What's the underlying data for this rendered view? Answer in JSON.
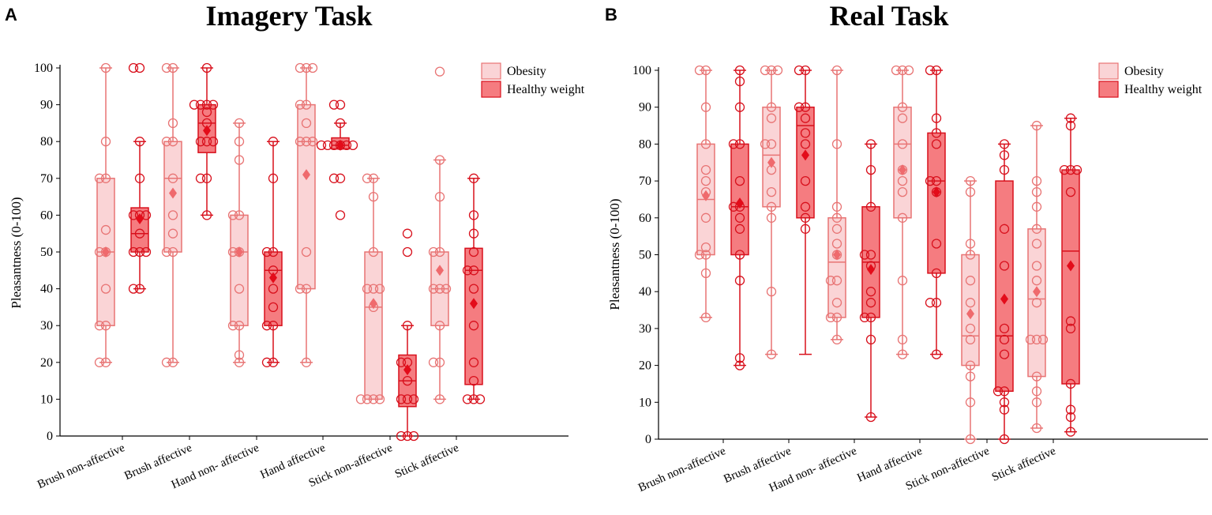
{
  "panels": [
    {
      "letter": "A",
      "title": "Imagery Task",
      "ylabel": "Pleasantness (0-100)",
      "legend": [
        "Obesity",
        "Healthy weight"
      ]
    },
    {
      "letter": "B",
      "title": "Real Task",
      "ylabel": "Pleasantness (0-100)",
      "legend": [
        "Obesity",
        "Healthy weight"
      ]
    }
  ],
  "colors": {
    "obesity_fill": "#fad4d6",
    "obesity_stroke": "#e87474",
    "healthy_fill": "#f57c80",
    "healthy_stroke": "#d8101c",
    "obesity_mean": "#ef6a6d",
    "healthy_mean": "#e30c1a"
  },
  "chart_data": [
    {
      "type": "box",
      "title": "Imagery Task",
      "ylabel": "Pleasantness (0-100)",
      "ylim": [
        0,
        100
      ],
      "yticks": [
        0,
        10,
        20,
        30,
        40,
        50,
        60,
        70,
        80,
        90,
        100
      ],
      "categories": [
        "Brush non-affective",
        "Brush affective",
        "Hand non- affective",
        "Hand affective",
        "Stick non-affective",
        "Stick affective"
      ],
      "series": [
        {
          "name": "Obesity",
          "boxes": [
            {
              "min": 20,
              "q1": 30,
              "median": 50,
              "q3": 70,
              "max": 100,
              "mean": 50,
              "points": [
                20,
                20,
                30,
                30,
                40,
                50,
                50,
                56,
                70,
                70,
                80,
                100
              ]
            },
            {
              "min": 20,
              "q1": 50,
              "median": 70,
              "q3": 80,
              "max": 100,
              "mean": 66,
              "points": [
                20,
                20,
                50,
                50,
                55,
                60,
                70,
                80,
                80,
                85,
                100,
                100
              ]
            },
            {
              "min": 20,
              "q1": 30,
              "median": 50,
              "q3": 60,
              "max": 85,
              "mean": 50,
              "points": [
                20,
                22,
                30,
                30,
                40,
                50,
                50,
                60,
                60,
                75,
                80,
                85
              ]
            },
            {
              "min": 20,
              "q1": 40,
              "median": 80,
              "q3": 90,
              "max": 100,
              "mean": 71,
              "points": [
                20,
                40,
                40,
                50,
                80,
                80,
                80,
                85,
                90,
                90,
                100,
                100,
                100
              ]
            },
            {
              "min": 10,
              "q1": 10,
              "median": 35,
              "q3": 50,
              "max": 70,
              "mean": 36,
              "points": [
                10,
                10,
                10,
                10,
                35,
                40,
                40,
                40,
                50,
                65,
                70,
                70
              ]
            },
            {
              "min": 10,
              "q1": 30,
              "median": 40,
              "q3": 50,
              "max": 75,
              "mean": 45,
              "points": [
                10,
                20,
                20,
                30,
                40,
                40,
                40,
                50,
                50,
                65,
                75,
                99
              ]
            }
          ]
        },
        {
          "name": "Healthy weight",
          "boxes": [
            {
              "min": 40,
              "q1": 50,
              "median": 55,
              "q3": 62,
              "max": 80,
              "mean": 59,
              "points": [
                40,
                40,
                50,
                50,
                50,
                55,
                60,
                60,
                60,
                70,
                80,
                100,
                100
              ]
            },
            {
              "min": 60,
              "q1": 77,
              "median": 85,
              "q3": 90,
              "max": 100,
              "mean": 83,
              "points": [
                60,
                70,
                70,
                80,
                80,
                80,
                85,
                88,
                90,
                90,
                90,
                90,
                100
              ]
            },
            {
              "min": 20,
              "q1": 30,
              "median": 45,
              "q3": 50,
              "max": 80,
              "mean": 43,
              "points": [
                20,
                20,
                30,
                30,
                35,
                40,
                45,
                50,
                50,
                70,
                80
              ]
            },
            {
              "min": 78,
              "q1": 78,
              "median": 79,
              "q3": 81,
              "max": 85,
              "mean": 79,
              "points": [
                60,
                70,
                70,
                79,
                79,
                79,
                79,
                79,
                79,
                85,
                90,
                90
              ]
            },
            {
              "min": 0,
              "q1": 8,
              "median": 15,
              "q3": 22,
              "max": 30,
              "mean": 18,
              "points": [
                0,
                0,
                0,
                10,
                10,
                10,
                15,
                20,
                20,
                30,
                50,
                55
              ]
            },
            {
              "min": 10,
              "q1": 14,
              "median": 45,
              "q3": 51,
              "max": 70,
              "mean": 36,
              "points": [
                10,
                10,
                10,
                15,
                20,
                30,
                40,
                45,
                45,
                50,
                55,
                60,
                70
              ]
            }
          ]
        }
      ]
    },
    {
      "type": "box",
      "title": "Real Task",
      "ylabel": "Pleasantness (0-100)",
      "ylim": [
        0,
        100
      ],
      "yticks": [
        0,
        10,
        20,
        30,
        40,
        50,
        60,
        70,
        80,
        90,
        100
      ],
      "categories": [
        "Brush non-affective",
        "Brush affective",
        "Hand non- affective",
        "Hand affective",
        "Stick non-affective",
        "Stick affective"
      ],
      "series": [
        {
          "name": "Obesity",
          "boxes": [
            {
              "min": 33,
              "q1": 50,
              "median": 65,
              "q3": 80,
              "max": 100,
              "mean": 66,
              "points": [
                33,
                45,
                50,
                50,
                52,
                60,
                67,
                70,
                73,
                80,
                90,
                100,
                100
              ]
            },
            {
              "min": 23,
              "q1": 63,
              "median": 77,
              "q3": 90,
              "max": 100,
              "mean": 75,
              "points": [
                23,
                40,
                60,
                63,
                67,
                73,
                80,
                80,
                87,
                90,
                100,
                100,
                100
              ]
            },
            {
              "min": 27,
              "q1": 33,
              "median": 48,
              "q3": 60,
              "max": 100,
              "mean": 50,
              "points": [
                27,
                33,
                33,
                37,
                43,
                43,
                50,
                53,
                57,
                60,
                63,
                80,
                100
              ]
            },
            {
              "min": 23,
              "q1": 60,
              "median": 80,
              "q3": 90,
              "max": 100,
              "mean": 73,
              "points": [
                23,
                27,
                43,
                60,
                67,
                70,
                73,
                80,
                87,
                90,
                100,
                100,
                100
              ]
            },
            {
              "min": 0,
              "q1": 20,
              "median": 28,
              "q3": 50,
              "max": 70,
              "mean": 34,
              "points": [
                0,
                10,
                17,
                20,
                27,
                30,
                37,
                43,
                50,
                53,
                67,
                70
              ]
            },
            {
              "min": 3,
              "q1": 17,
              "median": 38,
              "q3": 57,
              "max": 85,
              "mean": 40,
              "points": [
                3,
                10,
                13,
                17,
                27,
                27,
                27,
                37,
                43,
                47,
                53,
                57,
                63,
                67,
                70,
                85
              ]
            }
          ]
        },
        {
          "name": "Healthy weight",
          "boxes": [
            {
              "min": 20,
              "q1": 50,
              "median": 63,
              "q3": 80,
              "max": 100,
              "mean": 64,
              "points": [
                20,
                22,
                43,
                50,
                57,
                60,
                63,
                63,
                70,
                80,
                80,
                90,
                97,
                100
              ]
            },
            {
              "min": 23,
              "q1": 60,
              "median": 85,
              "q3": 90,
              "max": 100,
              "mean": 77,
              "points": [
                57,
                60,
                63,
                70,
                80,
                83,
                87,
                90,
                90,
                100,
                100
              ]
            },
            {
              "min": 6,
              "q1": 33,
              "median": 48,
              "q3": 63,
              "max": 80,
              "mean": 46,
              "points": [
                6,
                27,
                33,
                33,
                37,
                40,
                47,
                50,
                50,
                63,
                73,
                80
              ]
            },
            {
              "min": 23,
              "q1": 45,
              "median": 70,
              "q3": 83,
              "max": 100,
              "mean": 67,
              "points": [
                23,
                37,
                37,
                45,
                53,
                67,
                70,
                70,
                80,
                83,
                87,
                100,
                100
              ]
            },
            {
              "min": 0,
              "q1": 13,
              "median": 28,
              "q3": 70,
              "max": 80,
              "mean": 38,
              "points": [
                0,
                8,
                10,
                13,
                13,
                23,
                27,
                30,
                47,
                57,
                73,
                77,
                80
              ]
            },
            {
              "min": 2,
              "q1": 15,
              "median": 51,
              "q3": 73,
              "max": 87,
              "mean": 47,
              "points": [
                2,
                6,
                8,
                15,
                30,
                32,
                67,
                73,
                73,
                73,
                85,
                87
              ]
            }
          ]
        }
      ]
    }
  ]
}
